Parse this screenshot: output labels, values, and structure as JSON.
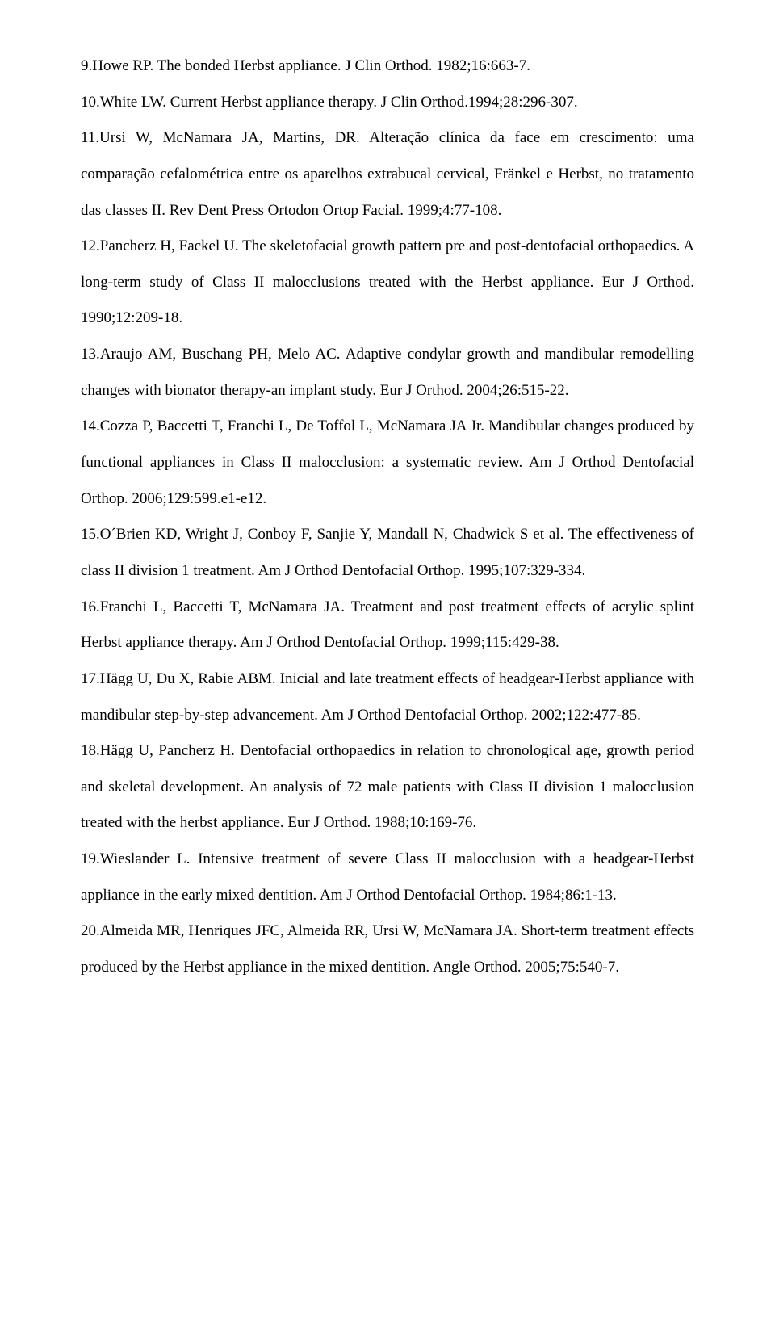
{
  "refs": [
    "9.Howe RP. The bonded Herbst appliance. J Clin Orthod. 1982;16:663-7.",
    "10.White LW. Current Herbst appliance therapy. J Clin Orthod.1994;28:296-307.",
    "11.Ursi W, McNamara JA, Martins, DR. Alteração clínica da face em crescimento: uma comparação cefalométrica entre os aparelhos extrabucal cervical, Fränkel e Herbst, no tratamento das classes II. Rev Dent Press Ortodon Ortop Facial. 1999;4:77-108.",
    "12.Pancherz H, Fackel U. The skeletofacial growth pattern pre and post-dentofacial orthopaedics. A long-term study of Class II malocclusions treated with the Herbst appliance. Eur J Orthod. 1990;12:209-18.",
    "13.Araujo AM, Buschang PH, Melo AC. Adaptive condylar growth and mandibular remodelling changes with bionator therapy-an implant study. Eur J Orthod. 2004;26:515-22.",
    "14.Cozza P, Baccetti T, Franchi L, De Toffol L, McNamara JA Jr. Mandibular changes produced by functional appliances in Class II malocclusion: a systematic review. Am J Orthod Dentofacial Orthop. 2006;129:599.e1-e12.",
    "15.O´Brien KD, Wright J, Conboy F, Sanjie Y, Mandall N, Chadwick S et al. The effectiveness of class II division 1 treatment. Am J Orthod Dentofacial Orthop. 1995;107:329-334.",
    "16.Franchi L, Baccetti T, McNamara JA. Treatment and post treatment effects of acrylic splint Herbst appliance therapy. Am J Orthod Dentofacial Orthop. 1999;115:429-38.",
    "17.Hägg U, Du X, Rabie ABM. Inicial and late treatment effects of headgear-Herbst appliance with mandibular step-by-step advancement. Am J Orthod Dentofacial Orthop. 2002;122:477-85.",
    "18.Hägg U, Pancherz H. Dentofacial orthopaedics in relation to chronological age, growth period and skeletal development. An analysis of 72 male patients with Class II division 1 malocclusion treated with the herbst appliance. Eur J Orthod. 1988;10:169-76.",
    "19.Wieslander L. Intensive treatment of severe Class II malocclusion with a headgear-Herbst appliance in the early mixed dentition. Am J Orthod Dentofacial Orthop. 1984;86:1-13.",
    "20.Almeida MR, Henriques JFC, Almeida RR, Ursi W, McNamara JA. Short-term treatment effects produced by the Herbst appliance in the mixed dentition. Angle Orthod. 2005;75:540-7."
  ]
}
